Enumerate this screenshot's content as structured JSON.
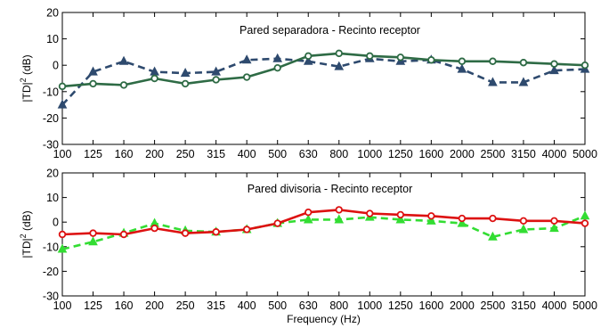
{
  "chart_data": [
    {
      "type": "line",
      "title": "Pared separadora - Recinto receptor",
      "ylabel": "|TD|",
      "ylabel_sup": "2",
      "ylabel_unit": " (dB)",
      "xlabel": "",
      "categories": [
        "100",
        "125",
        "160",
        "200",
        "250",
        "315",
        "400",
        "500",
        "630",
        "800",
        "1000",
        "1250",
        "1600",
        "2000",
        "2500",
        "3150",
        "4000",
        "5000"
      ],
      "yticks": [
        "20",
        "10",
        "0",
        "-10",
        "-20",
        "-30"
      ],
      "ylim": [
        -30,
        20
      ],
      "grid": false,
      "series": [
        {
          "color": "#2e4a6e",
          "marker": "triangle",
          "dash": "dashed",
          "values": [
            -15,
            -2.5,
            1.5,
            -2.5,
            -3,
            -2.5,
            2,
            2.5,
            1.5,
            -0.5,
            2.5,
            1.5,
            2,
            -1.5,
            -6.5,
            -6.5,
            -2,
            -1.5
          ]
        },
        {
          "color": "#2e6b45",
          "marker": "circle",
          "dash": "solid",
          "values": [
            -8,
            -7,
            -7.5,
            -5,
            -7,
            -5.5,
            -4.5,
            -1,
            3.5,
            4.5,
            3.5,
            3,
            2,
            1.5,
            1.5,
            1,
            0.5,
            0
          ]
        }
      ]
    },
    {
      "type": "line",
      "title": "Pared divisoria - Recinto receptor",
      "ylabel": "|TD|",
      "ylabel_sup": "2",
      "ylabel_unit": " (dB)",
      "xlabel": "Frequency (Hz)",
      "categories": [
        "100",
        "125",
        "160",
        "200",
        "250",
        "315",
        "400",
        "500",
        "630",
        "800",
        "1000",
        "1250",
        "1600",
        "2000",
        "2500",
        "3150",
        "4000",
        "5000"
      ],
      "yticks": [
        "20",
        "10",
        "0",
        "-10",
        "-20",
        "-30"
      ],
      "ylim": [
        -30,
        20
      ],
      "grid": false,
      "series": [
        {
          "color": "#33dd33",
          "marker": "triangle",
          "dash": "dashed",
          "values": [
            -11,
            -8,
            -4.5,
            -0.5,
            -3.5,
            -4,
            -3,
            -0.5,
            1,
            1,
            2,
            1,
            0.5,
            -0.5,
            -6,
            -3,
            -2.5,
            2.5
          ]
        },
        {
          "color": "#dd1111",
          "marker": "circle",
          "dash": "solid",
          "values": [
            -5,
            -4.5,
            -5,
            -2.5,
            -4.5,
            -4,
            -3,
            -0.5,
            4,
            5,
            3.5,
            3,
            2.5,
            1.5,
            1.5,
            0.5,
            0.5,
            -0.5
          ]
        }
      ]
    }
  ]
}
